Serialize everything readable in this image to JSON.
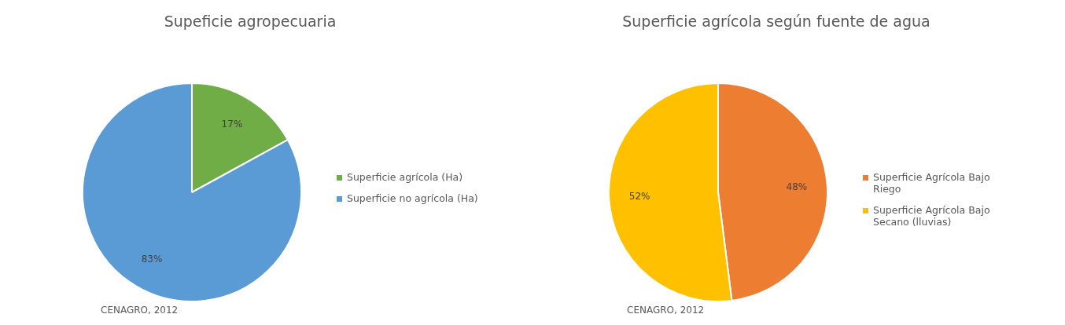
{
  "chart_data": [
    {
      "type": "pie",
      "title": "Supeficie agropecuaria",
      "categories": [
        "Superficie agrícola (Ha)",
        "Superficie no agrícola (Ha)"
      ],
      "values": [
        17,
        83
      ],
      "colors": [
        "#70ad47",
        "#5b9bd5"
      ],
      "value_labels": [
        "17%",
        "83%"
      ],
      "legend": "right",
      "annotations": [
        "CENAGRO, 2012"
      ]
    },
    {
      "type": "pie",
      "title": "Superficie agrícola según fuente de agua",
      "categories": [
        "Superficie Agrícola Bajo Riego",
        "Superficie Agrícola Bajo Secano (lluvias)"
      ],
      "values": [
        48,
        52
      ],
      "colors": [
        "#ed7d31",
        "#ffc000"
      ],
      "value_labels": [
        "48%",
        "52%"
      ],
      "legend": "right",
      "annotations": [
        "CENAGRO, 2012"
      ]
    }
  ]
}
